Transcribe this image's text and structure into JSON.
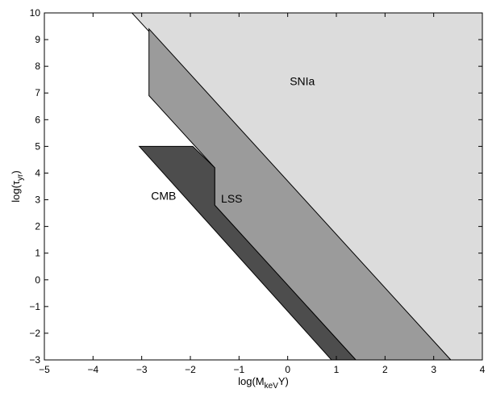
{
  "chart_data": {
    "type": "area",
    "title": "",
    "xlabel_main": "log(M",
    "xlabel_sub": "keV",
    "xlabel_tail": "Y)",
    "ylabel_main": "log(τ",
    "ylabel_sub": "yr",
    "ylabel_tail": ")",
    "xlim": [
      -5,
      4
    ],
    "ylim": [
      -3,
      10
    ],
    "xticks": [
      -5,
      -4,
      -3,
      -2,
      -1,
      0,
      1,
      2,
      3,
      4
    ],
    "yticks": [
      -3,
      -2,
      -1,
      0,
      1,
      2,
      3,
      4,
      5,
      6,
      7,
      8,
      9,
      10
    ],
    "xtick_labels": [
      "−5",
      "−4",
      "−3",
      "−2",
      "−1",
      "0",
      "1",
      "2",
      "3",
      "4"
    ],
    "ytick_labels": [
      "−3",
      "−2",
      "−1",
      "0",
      "1",
      "2",
      "3",
      "4",
      "5",
      "6",
      "7",
      "8",
      "9",
      "10"
    ],
    "grid": false,
    "regions": [
      {
        "name": "SNIa",
        "color": "#dcdcdc",
        "polygon": [
          [
            -3.2,
            10
          ],
          [
            4,
            10
          ],
          [
            4,
            -3
          ],
          [
            3.35,
            -3
          ]
        ],
        "label_at": [
          0.3,
          7.3
        ]
      },
      {
        "name": "LSS",
        "color": "#9b9b9b",
        "polygon": [
          [
            -2.85,
            9.4
          ],
          [
            3.35,
            -3
          ],
          [
            1.4,
            -3
          ],
          [
            -1.5,
            2.8
          ],
          [
            -1.5,
            4.2
          ],
          [
            -2.85,
            6.9
          ]
        ],
        "label_at": [
          -1.15,
          2.9
        ]
      },
      {
        "name": "CMB",
        "color": "#4d4d4d",
        "polygon": [
          [
            -3.05,
            5.0
          ],
          [
            -1.95,
            5.0
          ],
          [
            -1.5,
            4.2
          ],
          [
            -1.5,
            2.8
          ],
          [
            1.4,
            -3
          ],
          [
            0.9,
            -3
          ]
        ],
        "label_at": [
          -2.55,
          3.0
        ]
      }
    ]
  }
}
